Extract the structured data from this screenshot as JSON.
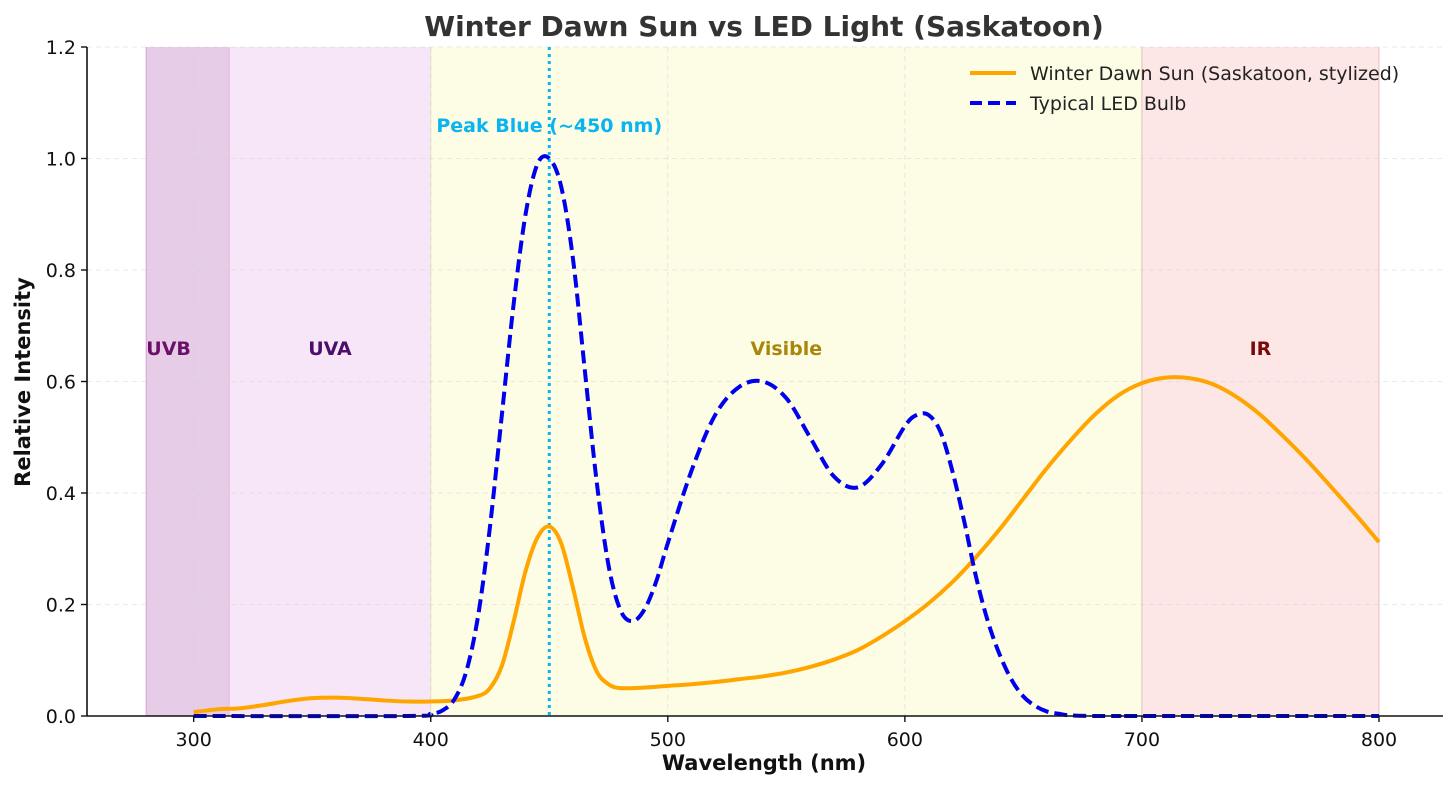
{
  "chart_data": {
    "type": "line",
    "title": "Winter Dawn Sun vs LED Light (Saskatoon)",
    "xlabel": "Wavelength (nm)",
    "ylabel": "Relative Intensity",
    "xlim": [
      255,
      827
    ],
    "ylim": [
      0,
      1.2
    ],
    "x_ticks": [
      300,
      400,
      500,
      600,
      700,
      800
    ],
    "y_ticks": [
      0.0,
      0.2,
      0.4,
      0.6,
      0.8,
      1.0,
      1.2
    ],
    "x_tick_labels": [
      "300",
      "400",
      "500",
      "600",
      "700",
      "800"
    ],
    "y_tick_labels": [
      "0.0",
      "0.2",
      "0.4",
      "0.6",
      "0.8",
      "1.0",
      "1.2"
    ],
    "grid": true,
    "legend_position": "top-right",
    "regions": [
      {
        "label": "UVB",
        "x_start": 280,
        "x_end": 315,
        "fill": "#e6cce6",
        "edge": "#d9a8d9",
        "text_color": "#6b0f6b"
      },
      {
        "label": "UVA",
        "x_start": 315,
        "x_end": 400,
        "fill": "#f7e6f7",
        "edge": "#e8bfe8",
        "text_color": "#4b0f6b"
      },
      {
        "label": "Visible",
        "x_start": 400,
        "x_end": 700,
        "fill": "#fdfde6",
        "edge": "#ecebcc",
        "text_color": "#a8860a"
      },
      {
        "label": "IR",
        "x_start": 700,
        "x_end": 800,
        "fill": "#fde6e6",
        "edge": "#efc7c7",
        "text_color": "#7a0a0a"
      }
    ],
    "region_label_y": 0.66,
    "annotation": {
      "text": "Peak Blue (~450 nm)",
      "x": 450,
      "y": 1.06,
      "color": "#0ab4f0"
    },
    "vline": {
      "x": 450,
      "color": "#0ab4f0"
    },
    "series": [
      {
        "name": "Winter Dawn Sun (Saskatoon, stylized)",
        "color": "#ffa500",
        "style": "solid",
        "x": [
          300,
          310,
          320,
          330,
          340,
          350,
          360,
          370,
          380,
          390,
          400,
          410,
          420,
          425,
          430,
          435,
          440,
          445,
          450,
          455,
          460,
          465,
          470,
          475,
          480,
          490,
          500,
          510,
          520,
          530,
          540,
          550,
          560,
          570,
          580,
          590,
          600,
          610,
          620,
          630,
          640,
          650,
          660,
          670,
          680,
          690,
          700,
          710,
          720,
          730,
          740,
          750,
          760,
          770,
          780,
          790,
          800
        ],
        "y": [
          0.007,
          0.012,
          0.014,
          0.02,
          0.027,
          0.032,
          0.033,
          0.031,
          0.028,
          0.026,
          0.026,
          0.028,
          0.036,
          0.05,
          0.09,
          0.17,
          0.26,
          0.32,
          0.34,
          0.31,
          0.23,
          0.14,
          0.08,
          0.057,
          0.05,
          0.051,
          0.054,
          0.057,
          0.061,
          0.066,
          0.071,
          0.078,
          0.088,
          0.101,
          0.118,
          0.142,
          0.17,
          0.202,
          0.24,
          0.285,
          0.335,
          0.39,
          0.445,
          0.495,
          0.54,
          0.575,
          0.597,
          0.607,
          0.606,
          0.595,
          0.572,
          0.54,
          0.5,
          0.457,
          0.41,
          0.362,
          0.312
        ]
      },
      {
        "name": "Typical LED Bulb",
        "color": "#0000ee",
        "style": "dashed",
        "x": [
          300,
          390,
          400,
          405,
          410,
          415,
          420,
          425,
          430,
          435,
          440,
          445,
          450,
          455,
          460,
          465,
          470,
          475,
          480,
          485,
          490,
          495,
          500,
          510,
          520,
          530,
          540,
          550,
          560,
          570,
          580,
          590,
          600,
          605,
          610,
          615,
          620,
          625,
          630,
          635,
          640,
          645,
          650,
          655,
          660,
          665,
          670,
          680,
          690,
          700,
          800
        ],
        "y": [
          0.0,
          0.0,
          0.004,
          0.01,
          0.03,
          0.08,
          0.18,
          0.34,
          0.54,
          0.74,
          0.9,
          0.99,
          1.0,
          0.95,
          0.82,
          0.62,
          0.42,
          0.27,
          0.19,
          0.17,
          0.19,
          0.24,
          0.31,
          0.44,
          0.54,
          0.59,
          0.6,
          0.57,
          0.5,
          0.43,
          0.41,
          0.45,
          0.52,
          0.54,
          0.54,
          0.51,
          0.44,
          0.35,
          0.25,
          0.17,
          0.11,
          0.065,
          0.035,
          0.018,
          0.008,
          0.004,
          0.001,
          0.0,
          0.0,
          0.0,
          0.0
        ]
      }
    ]
  }
}
